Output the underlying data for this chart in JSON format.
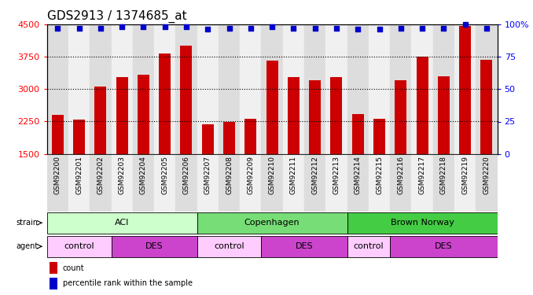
{
  "title": "GDS2913 / 1374685_at",
  "samples": [
    "GSM92200",
    "GSM92201",
    "GSM92202",
    "GSM92203",
    "GSM92204",
    "GSM92205",
    "GSM92206",
    "GSM92207",
    "GSM92208",
    "GSM92209",
    "GSM92210",
    "GSM92211",
    "GSM92212",
    "GSM92213",
    "GSM92214",
    "GSM92215",
    "GSM92216",
    "GSM92217",
    "GSM92218",
    "GSM92219",
    "GSM92220"
  ],
  "counts": [
    2400,
    2300,
    3050,
    3280,
    3330,
    3820,
    4000,
    2180,
    2250,
    2320,
    3650,
    3270,
    3200,
    3270,
    2420,
    2320,
    3200,
    3750,
    3300,
    4450,
    3680
  ],
  "percentiles": [
    97,
    97,
    97,
    98,
    98,
    98,
    98,
    96,
    97,
    97,
    98,
    97,
    97,
    97,
    96,
    96,
    97,
    97,
    97,
    100,
    97
  ],
  "bar_color": "#cc0000",
  "dot_color": "#0000cc",
  "ylim_left": [
    1500,
    4500
  ],
  "ylim_right": [
    0,
    100
  ],
  "yticks_left": [
    1500,
    2250,
    3000,
    3750,
    4500
  ],
  "yticks_right": [
    0,
    25,
    50,
    75,
    100
  ],
  "grid_values": [
    2250,
    3000,
    3750
  ],
  "col_bg_even": "#dddddd",
  "col_bg_odd": "#f0f0f0",
  "strain_groups": [
    {
      "label": "ACI",
      "start": 0,
      "end": 6,
      "color": "#ccffcc"
    },
    {
      "label": "Copenhagen",
      "start": 7,
      "end": 13,
      "color": "#77dd77"
    },
    {
      "label": "Brown Norway",
      "start": 14,
      "end": 20,
      "color": "#44cc44"
    }
  ],
  "agent_groups": [
    {
      "label": "control",
      "start": 0,
      "end": 2,
      "color": "#ffccff"
    },
    {
      "label": "DES",
      "start": 3,
      "end": 6,
      "color": "#cc44cc"
    },
    {
      "label": "control",
      "start": 7,
      "end": 9,
      "color": "#ffccff"
    },
    {
      "label": "DES",
      "start": 10,
      "end": 13,
      "color": "#cc44cc"
    },
    {
      "label": "control",
      "start": 14,
      "end": 15,
      "color": "#ffccff"
    },
    {
      "label": "DES",
      "start": 16,
      "end": 20,
      "color": "#cc44cc"
    }
  ],
  "title_fontsize": 11,
  "tick_fontsize": 8,
  "label_fontsize": 7,
  "sample_fontsize": 6.5,
  "bar_width": 0.55
}
